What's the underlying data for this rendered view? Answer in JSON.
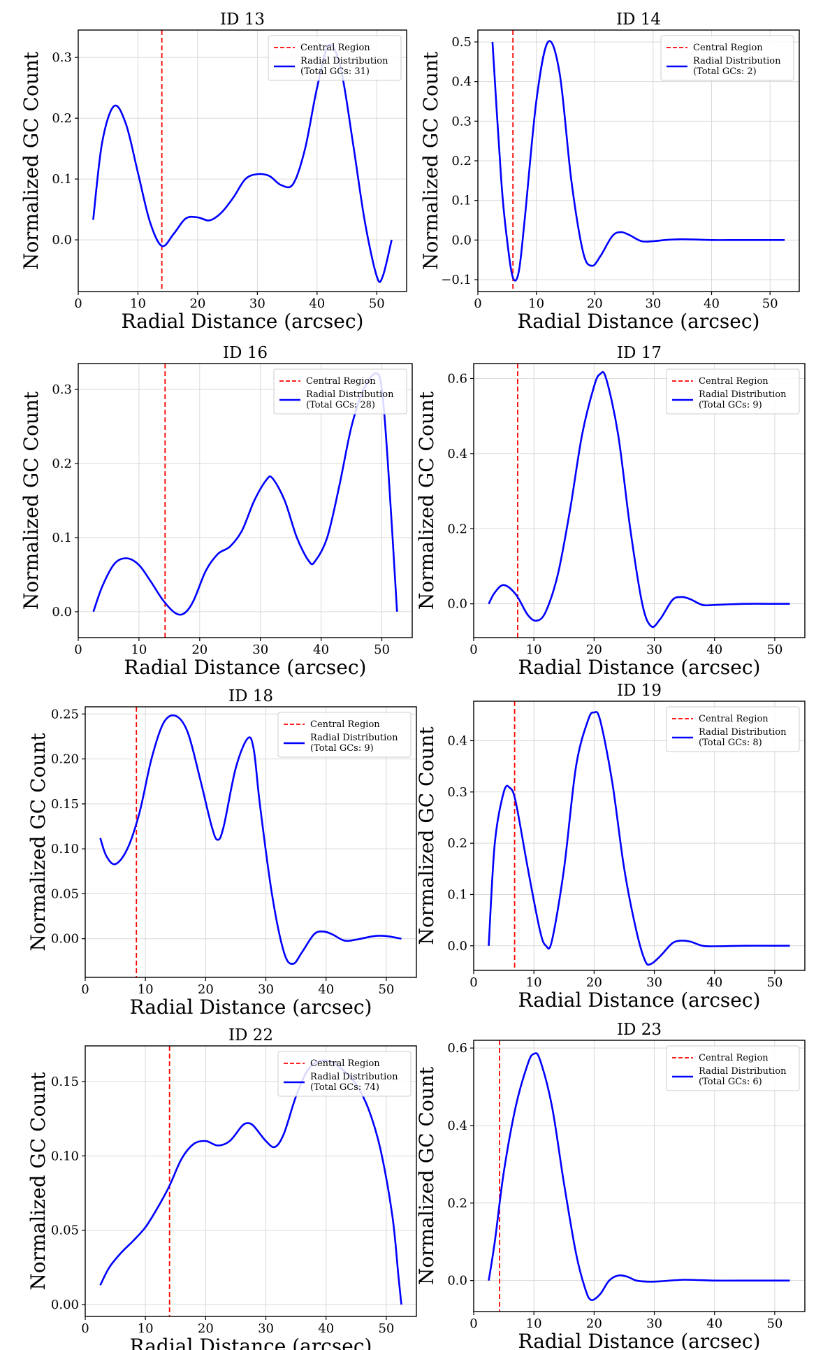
{
  "figure": {
    "xlabel": "Radial Distance (arcsec)",
    "ylabel": "Normalized GC Count",
    "legend_central": "Central Region",
    "legend_radial": "Radial Distribution",
    "colors": {
      "curve": "#0000ff",
      "central": "#ff0000",
      "grid": "#d9d9d9",
      "axis": "#000000"
    }
  },
  "chart_data": [
    {
      "type": "line",
      "title": "ID 13",
      "xlabel": "Radial Distance (arcsec)",
      "ylabel": "Normalized GC Count",
      "xlim": [
        0,
        55
      ],
      "ylim": [
        -0.085,
        0.345
      ],
      "xticks": [
        0,
        10,
        20,
        30,
        40,
        50
      ],
      "yticks": [
        0.0,
        0.1,
        0.2,
        0.3
      ],
      "ytick_decimals": 1,
      "central_region": 14,
      "legend_total": "(Total GCs: 31)",
      "series": [
        {
          "name": "Radial Distribution",
          "points": [
            [
              2.5,
              0.033
            ],
            [
              4,
              0.16
            ],
            [
              6,
              0.22
            ],
            [
              8,
              0.19
            ],
            [
              10,
              0.11
            ],
            [
              12,
              0.03
            ],
            [
              14,
              -0.01
            ],
            [
              16,
              0.01
            ],
            [
              18,
              0.035
            ],
            [
              20,
              0.037
            ],
            [
              22,
              0.032
            ],
            [
              24,
              0.045
            ],
            [
              26,
              0.07
            ],
            [
              28,
              0.1
            ],
            [
              30,
              0.108
            ],
            [
              32,
              0.105
            ],
            [
              34,
              0.09
            ],
            [
              36,
              0.092
            ],
            [
              38,
              0.15
            ],
            [
              40,
              0.25
            ],
            [
              42,
              0.32
            ],
            [
              44,
              0.28
            ],
            [
              46,
              0.16
            ],
            [
              48,
              0.03
            ],
            [
              50,
              -0.06
            ],
            [
              51,
              -0.06
            ],
            [
              52.5,
              0.0
            ]
          ]
        }
      ]
    },
    {
      "type": "line",
      "title": "ID 14",
      "xlabel": "Radial Distance (arcsec)",
      "ylabel": "Normalized GC Count",
      "xlim": [
        0,
        55
      ],
      "ylim": [
        -0.13,
        0.53
      ],
      "xticks": [
        0,
        10,
        20,
        30,
        40,
        50
      ],
      "yticks": [
        -0.1,
        0.0,
        0.1,
        0.2,
        0.3,
        0.4,
        0.5
      ],
      "ytick_decimals": 1,
      "central_region": 6,
      "legend_total": "(Total GCs: 2)",
      "series": [
        {
          "name": "Radial Distribution",
          "points": [
            [
              2.5,
              0.5
            ],
            [
              4,
              0.15
            ],
            [
              5,
              0.0
            ],
            [
              6,
              -0.095
            ],
            [
              7,
              -0.08
            ],
            [
              8,
              0.05
            ],
            [
              10,
              0.35
            ],
            [
              12,
              0.5
            ],
            [
              14,
              0.42
            ],
            [
              16,
              0.15
            ],
            [
              18,
              -0.03
            ],
            [
              19.5,
              -0.065
            ],
            [
              21,
              -0.04
            ],
            [
              23,
              0.01
            ],
            [
              24.5,
              0.02
            ],
            [
              26,
              0.012
            ],
            [
              28,
              -0.003
            ],
            [
              30,
              -0.003
            ],
            [
              32,
              0.0
            ],
            [
              35,
              0.002
            ],
            [
              40,
              0.0
            ],
            [
              45,
              0.0
            ],
            [
              52.5,
              0.0
            ]
          ]
        }
      ]
    },
    {
      "type": "line",
      "title": "ID 16",
      "xlabel": "Radial Distance (arcsec)",
      "ylabel": "Normalized GC Count",
      "xlim": [
        0,
        55
      ],
      "ylim": [
        -0.035,
        0.335
      ],
      "xticks": [
        0,
        10,
        20,
        30,
        40,
        50
      ],
      "yticks": [
        0.0,
        0.1,
        0.2,
        0.3
      ],
      "ytick_decimals": 1,
      "central_region": 14.3,
      "legend_total": "(Total GCs: 28)",
      "series": [
        {
          "name": "Radial Distribution",
          "points": [
            [
              2.5,
              0.0
            ],
            [
              4,
              0.035
            ],
            [
              6,
              0.065
            ],
            [
              8,
              0.072
            ],
            [
              10,
              0.063
            ],
            [
              12,
              0.04
            ],
            [
              14,
              0.015
            ],
            [
              16,
              -0.002
            ],
            [
              17.5,
              -0.002
            ],
            [
              19,
              0.015
            ],
            [
              21,
              0.055
            ],
            [
              23,
              0.078
            ],
            [
              25,
              0.088
            ],
            [
              27,
              0.11
            ],
            [
              29,
              0.15
            ],
            [
              31,
              0.178
            ],
            [
              32,
              0.18
            ],
            [
              34,
              0.15
            ],
            [
              36,
              0.1
            ],
            [
              38,
              0.068
            ],
            [
              39,
              0.068
            ],
            [
              41,
              0.1
            ],
            [
              43,
              0.17
            ],
            [
              45,
              0.25
            ],
            [
              47,
              0.3
            ],
            [
              49,
              0.322
            ],
            [
              50,
              0.3
            ],
            [
              51,
              0.2
            ],
            [
              52.5,
              0.0
            ]
          ]
        }
      ]
    },
    {
      "type": "line",
      "title": "ID 17",
      "xlabel": "Radial Distance (arcsec)",
      "ylabel": "Normalized GC Count",
      "xlim": [
        0,
        55
      ],
      "ylim": [
        -0.09,
        0.64
      ],
      "xticks": [
        0,
        10,
        20,
        30,
        40,
        50
      ],
      "yticks": [
        0.0,
        0.2,
        0.4,
        0.6
      ],
      "ytick_decimals": 1,
      "central_region": 7.3,
      "legend_total": "(Total GCs: 9)",
      "series": [
        {
          "name": "Radial Distribution",
          "points": [
            [
              2.5,
              0.0
            ],
            [
              3.5,
              0.03
            ],
            [
              5,
              0.05
            ],
            [
              7,
              0.025
            ],
            [
              9,
              -0.03
            ],
            [
              10.5,
              -0.045
            ],
            [
              12,
              -0.02
            ],
            [
              14,
              0.08
            ],
            [
              16,
              0.25
            ],
            [
              18,
              0.45
            ],
            [
              20,
              0.58
            ],
            [
              21,
              0.612
            ],
            [
              22,
              0.6
            ],
            [
              24,
              0.45
            ],
            [
              26,
              0.2
            ],
            [
              28,
              0.0
            ],
            [
              29.5,
              -0.06
            ],
            [
              31,
              -0.04
            ],
            [
              33,
              0.01
            ],
            [
              34.5,
              0.018
            ],
            [
              36,
              0.012
            ],
            [
              38,
              -0.003
            ],
            [
              40,
              -0.003
            ],
            [
              45,
              0.0
            ],
            [
              50,
              0.0
            ],
            [
              52.5,
              0.0
            ]
          ]
        }
      ]
    },
    {
      "type": "line",
      "title": "ID 18",
      "xlabel": "Radial Distance (arcsec)",
      "ylabel": "Normalized GC Count",
      "xlim": [
        0,
        55
      ],
      "ylim": [
        -0.043,
        0.258
      ],
      "xticks": [
        0,
        10,
        20,
        30,
        40,
        50
      ],
      "yticks": [
        0.0,
        0.05,
        0.1,
        0.15,
        0.2,
        0.25
      ],
      "ytick_decimals": 2,
      "central_region": 8.5,
      "legend_total": "(Total GCs: 9)",
      "series": [
        {
          "name": "Radial Distribution",
          "points": [
            [
              2.5,
              0.112
            ],
            [
              3.5,
              0.092
            ],
            [
              5,
              0.083
            ],
            [
              7,
              0.1
            ],
            [
              9,
              0.14
            ],
            [
              11,
              0.2
            ],
            [
              13,
              0.24
            ],
            [
              15,
              0.248
            ],
            [
              17,
              0.23
            ],
            [
              19,
              0.18
            ],
            [
              21,
              0.125
            ],
            [
              22,
              0.11
            ],
            [
              23,
              0.125
            ],
            [
              25,
              0.19
            ],
            [
              27,
              0.223
            ],
            [
              28,
              0.21
            ],
            [
              29,
              0.15
            ],
            [
              31,
              0.05
            ],
            [
              33,
              -0.015
            ],
            [
              34.5,
              -0.028
            ],
            [
              36,
              -0.015
            ],
            [
              38,
              0.005
            ],
            [
              39.5,
              0.008
            ],
            [
              41,
              0.005
            ],
            [
              43,
              -0.002
            ],
            [
              45,
              -0.001
            ],
            [
              48,
              0.003
            ],
            [
              50,
              0.003
            ],
            [
              52.5,
              0.0
            ]
          ]
        }
      ]
    },
    {
      "type": "line",
      "title": "ID 19",
      "xlabel": "Radial Distance (arcsec)",
      "ylabel": "Normalized GC Count",
      "xlim": [
        0,
        55
      ],
      "ylim": [
        -0.048,
        0.477
      ],
      "xticks": [
        0,
        10,
        20,
        30,
        40,
        50
      ],
      "yticks": [
        0.0,
        0.1,
        0.2,
        0.3,
        0.4
      ],
      "ytick_decimals": 1,
      "central_region": 6.8,
      "legend_total": "(Total GCs: 8)",
      "series": [
        {
          "name": "Radial Distribution",
          "points": [
            [
              2.5,
              0.0
            ],
            [
              3.5,
              0.2
            ],
            [
              5,
              0.3
            ],
            [
              6,
              0.308
            ],
            [
              7,
              0.28
            ],
            [
              9,
              0.15
            ],
            [
              11,
              0.03
            ],
            [
              12,
              0.0
            ],
            [
              13,
              0.01
            ],
            [
              15,
              0.15
            ],
            [
              17,
              0.35
            ],
            [
              19,
              0.44
            ],
            [
              20,
              0.455
            ],
            [
              21,
              0.44
            ],
            [
              23,
              0.32
            ],
            [
              25,
              0.15
            ],
            [
              27,
              0.03
            ],
            [
              28.5,
              -0.03
            ],
            [
              29.5,
              -0.035
            ],
            [
              31,
              -0.02
            ],
            [
              33,
              0.005
            ],
            [
              34.5,
              0.01
            ],
            [
              36,
              0.008
            ],
            [
              38,
              0.0
            ],
            [
              40,
              -0.001
            ],
            [
              45,
              0.0
            ],
            [
              50,
              0.0
            ],
            [
              52.5,
              0.0
            ]
          ]
        }
      ]
    },
    {
      "type": "line",
      "title": "ID 22",
      "xlabel": "Radial Distance (arcsec)",
      "ylabel": "Normalized GC Count",
      "xlim": [
        0,
        55
      ],
      "ylim": [
        -0.008,
        0.174
      ],
      "xticks": [
        0,
        10,
        20,
        30,
        40,
        50
      ],
      "yticks": [
        0.0,
        0.05,
        0.1,
        0.15
      ],
      "ytick_decimals": 2,
      "central_region": 14,
      "legend_total": "(Total GCs: 74)",
      "series": [
        {
          "name": "Radial Distribution",
          "points": [
            [
              2.5,
              0.013
            ],
            [
              4,
              0.025
            ],
            [
              6,
              0.035
            ],
            [
              8,
              0.043
            ],
            [
              10,
              0.052
            ],
            [
              12,
              0.065
            ],
            [
              14,
              0.08
            ],
            [
              16,
              0.098
            ],
            [
              18,
              0.108
            ],
            [
              20,
              0.11
            ],
            [
              22,
              0.107
            ],
            [
              24,
              0.11
            ],
            [
              26,
              0.12
            ],
            [
              27,
              0.122
            ],
            [
              28,
              0.12
            ],
            [
              30,
              0.11
            ],
            [
              31.5,
              0.106
            ],
            [
              33,
              0.115
            ],
            [
              35,
              0.14
            ],
            [
              37,
              0.158
            ],
            [
              39,
              0.164
            ],
            [
              41,
              0.163
            ],
            [
              43,
              0.157
            ],
            [
              45,
              0.148
            ],
            [
              47,
              0.132
            ],
            [
              49,
              0.105
            ],
            [
              51,
              0.06
            ],
            [
              52,
              0.02
            ],
            [
              52.5,
              0.0
            ]
          ]
        }
      ]
    },
    {
      "type": "line",
      "title": "ID 23",
      "xlabel": "Radial Distance (arcsec)",
      "ylabel": "Normalized GC Count",
      "xlim": [
        0,
        55
      ],
      "ylim": [
        -0.08,
        0.62
      ],
      "xticks": [
        0,
        10,
        20,
        30,
        40,
        50
      ],
      "yticks": [
        0.0,
        0.2,
        0.4,
        0.6
      ],
      "ytick_decimals": 1,
      "central_region": 4.3,
      "legend_total": "(Total GCs: 6)",
      "series": [
        {
          "name": "Radial Distribution",
          "points": [
            [
              2.5,
              0.0
            ],
            [
              3.5,
              0.1
            ],
            [
              5,
              0.28
            ],
            [
              7,
              0.45
            ],
            [
              9,
              0.56
            ],
            [
              10,
              0.585
            ],
            [
              11,
              0.57
            ],
            [
              13,
              0.45
            ],
            [
              15,
              0.25
            ],
            [
              17,
              0.07
            ],
            [
              18.5,
              -0.02
            ],
            [
              19.5,
              -0.05
            ],
            [
              21,
              -0.035
            ],
            [
              22.5,
              0.0
            ],
            [
              24,
              0.013
            ],
            [
              25.5,
              0.01
            ],
            [
              27,
              0.0
            ],
            [
              29,
              -0.003
            ],
            [
              31,
              -0.002
            ],
            [
              35,
              0.002
            ],
            [
              40,
              0.0
            ],
            [
              45,
              0.0
            ],
            [
              52.5,
              0.0
            ]
          ]
        }
      ]
    }
  ]
}
